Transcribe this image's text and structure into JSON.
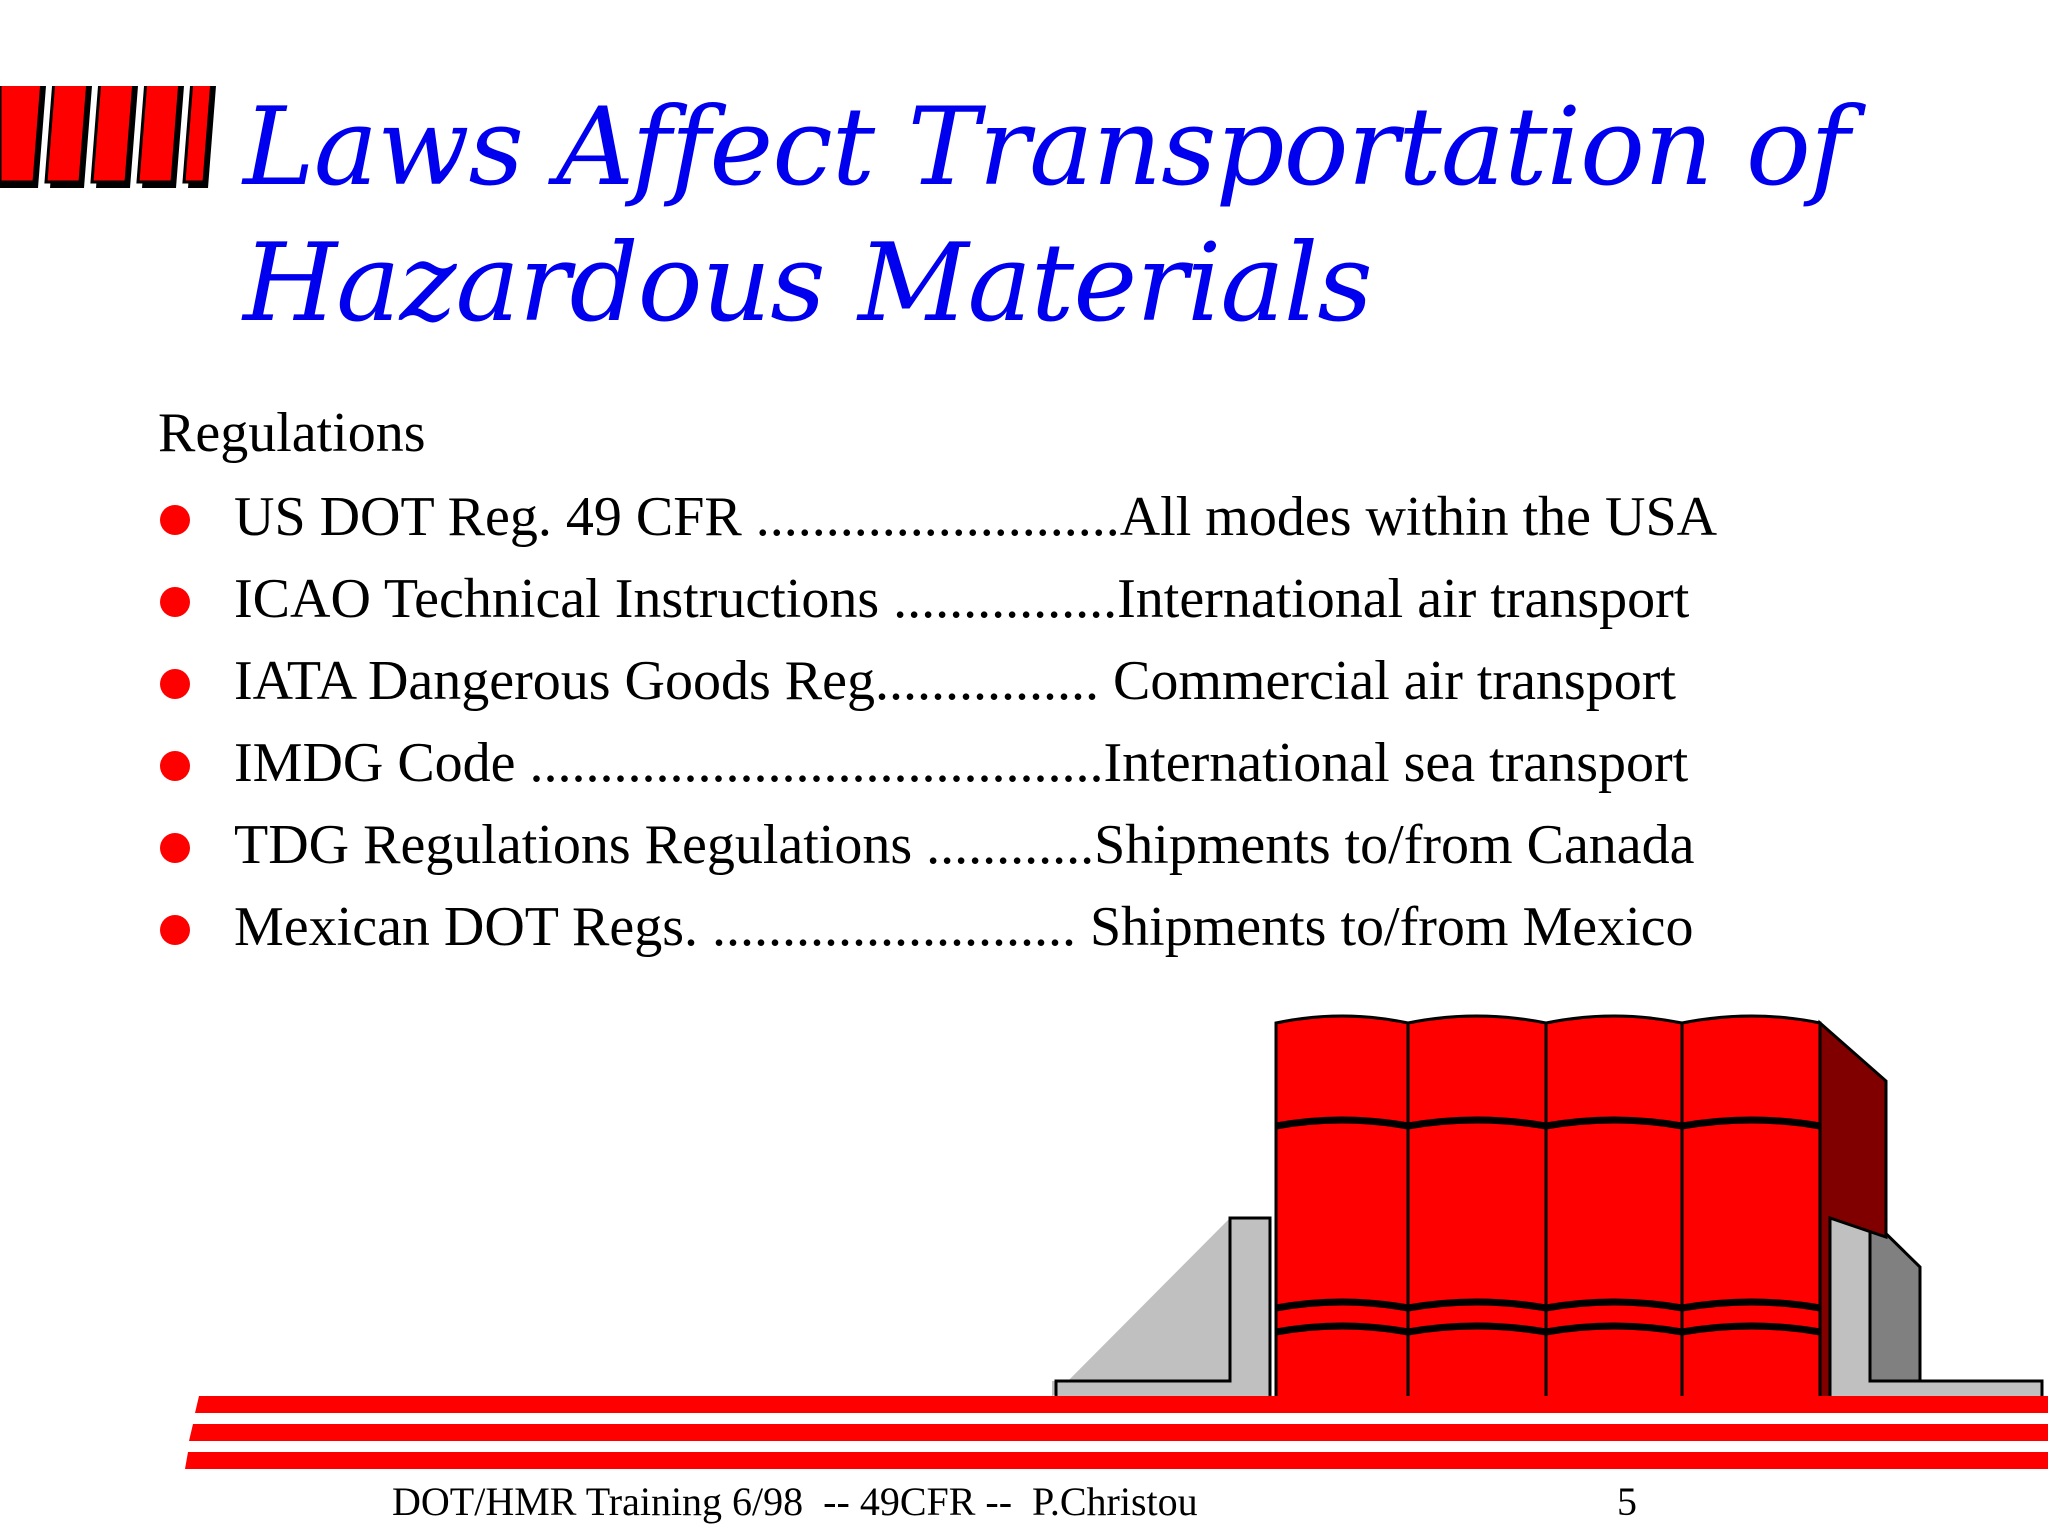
{
  "slide": {
    "title_line1": "Laws Affect Transportation of",
    "title_line2": "Hazardous Materials",
    "section_heading": "Regulations",
    "regulations": [
      {
        "text": "US DOT Reg. 49 CFR ..........................All modes within the USA"
      },
      {
        "text": "ICAO Technical Instructions ................International air transport"
      },
      {
        "text": "IATA Dangerous Goods Reg................ Commercial air transport"
      },
      {
        "text": "IMDG Code .........................................International sea transport"
      },
      {
        "text": "TDG Regulations Regulations ............Shipments to/from Canada"
      },
      {
        "text": "Mexican DOT Regs. .......................... Shipments to/from Mexico"
      }
    ],
    "footer": "DOT/HMR Training 6/98  -- 49CFR --  P.Christou",
    "page_number": "5"
  },
  "icons": {
    "logo": "red-slanted-bars-logo",
    "bullet": "red-dot-bullet-icon",
    "illustration": "drums-on-pallet-illustration"
  },
  "colors": {
    "title": "#0000ee",
    "accent": "#ff0000",
    "text": "#000000",
    "drum_shadow": "#800000",
    "bracket": "#c0c0c0"
  }
}
